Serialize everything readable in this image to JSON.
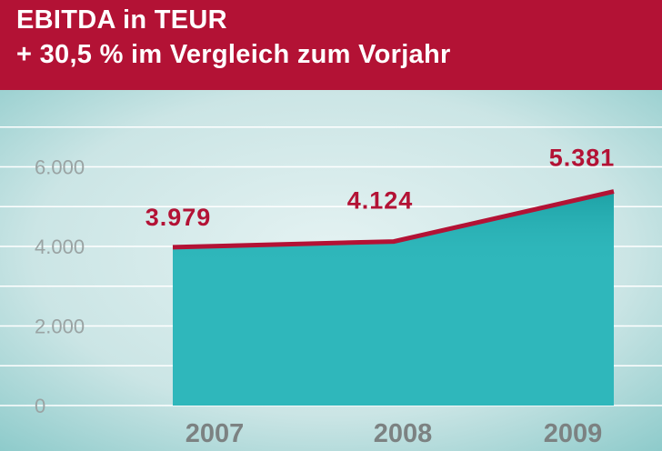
{
  "header": {
    "title": "EBITDA in TEUR",
    "subtitle": "+ 30,5 % im Vergleich zum Vorjahr"
  },
  "colors": {
    "header_bg": "#b31235",
    "area_fill": "#2fb7bb",
    "line": "#b31235",
    "value_labels": "#b31235",
    "tick_labels": "#9aa3a3",
    "category_labels": "#7c8282"
  },
  "chart_data": {
    "type": "area",
    "title": "EBITDA in TEUR",
    "subtitle": "+ 30,5 % im Vergleich zum Vorjahr",
    "categories": [
      "2007",
      "2008",
      "2009"
    ],
    "values": [
      3979,
      4124,
      5381
    ],
    "value_labels": [
      "3.979",
      "4.124",
      "5.381"
    ],
    "y_ticks": [
      0,
      2000,
      4000,
      6000
    ],
    "y_tick_labels": [
      "0",
      "2.000",
      "4.000",
      "6.000"
    ],
    "ylim": [
      0,
      7000
    ],
    "grid": true,
    "xlabel": "",
    "ylabel": ""
  }
}
